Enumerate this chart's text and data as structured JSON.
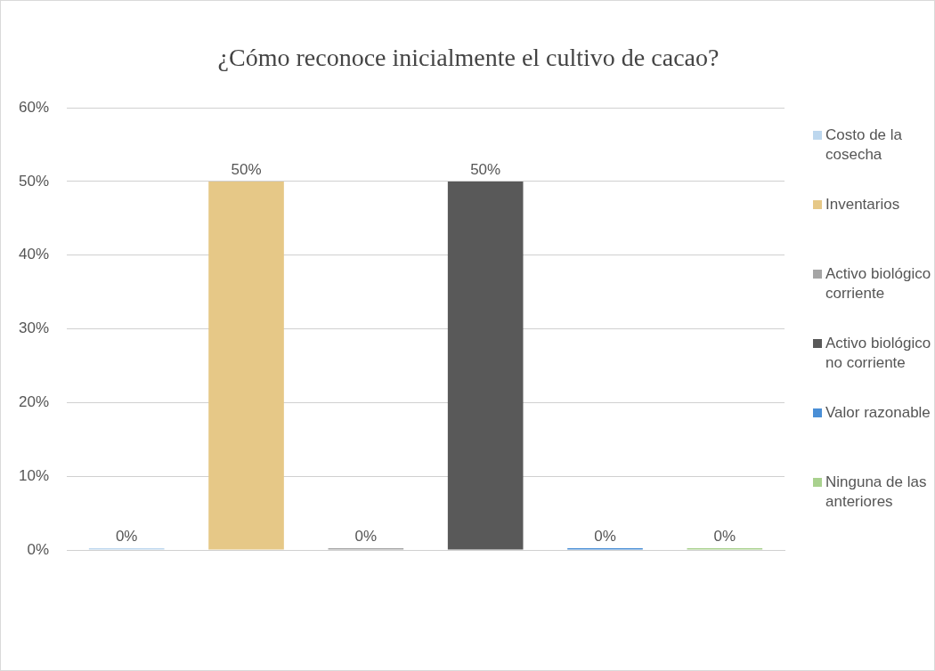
{
  "chart_data": {
    "type": "bar",
    "title": "¿Cómo reconoce inicialmente el cultivo de cacao?",
    "categories": [
      null
    ],
    "series": [
      {
        "name": "Costo de la cosecha",
        "color": "#bdd7ee",
        "values": [
          0
        ],
        "value_labels": [
          "0%"
        ]
      },
      {
        "name": "Inventarios",
        "color": "#e6c887",
        "values": [
          50
        ],
        "value_labels": [
          "50%"
        ]
      },
      {
        "name": "Activo biológico corriente",
        "color": "#a5a5a5",
        "values": [
          0
        ],
        "value_labels": [
          "0%"
        ]
      },
      {
        "name": "Activo biológico no corriente",
        "color": "#595959",
        "values": [
          50
        ],
        "value_labels": [
          "50%"
        ]
      },
      {
        "name": "Valor razonable",
        "color": "#4a8fd6",
        "values": [
          0
        ],
        "value_labels": [
          "0%"
        ]
      },
      {
        "name": "Ninguna de las anteriores",
        "color": "#a9d18e",
        "values": [
          0
        ],
        "value_labels": [
          "0%"
        ]
      }
    ],
    "ylim": [
      0,
      60
    ],
    "yticks": [
      {
        "value": 0,
        "label": "0%"
      },
      {
        "value": 10,
        "label": "10%"
      },
      {
        "value": 20,
        "label": "20%"
      },
      {
        "value": 30,
        "label": "30%"
      },
      {
        "value": 40,
        "label": "40%"
      },
      {
        "value": 50,
        "label": "50%"
      },
      {
        "value": 60,
        "label": "60%"
      }
    ],
    "grid": "y",
    "legend": "right"
  }
}
